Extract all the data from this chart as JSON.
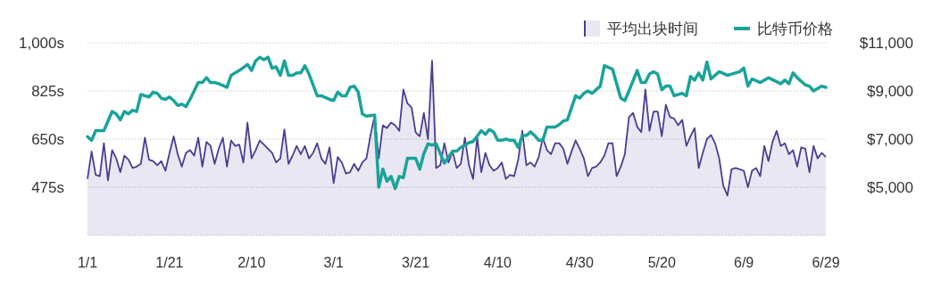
{
  "chart_data": {
    "type": "line",
    "grid": "y",
    "legend": "top right",
    "xlim": [
      "--01-01",
      "--06-29"
    ],
    "xticks": [
      {
        "value": "--01-01",
        "label": "1/1"
      },
      {
        "value": "--01-21",
        "label": "1/21"
      },
      {
        "value": "--02-10",
        "label": "2/10"
      },
      {
        "value": "--03-01",
        "label": "3/1"
      },
      {
        "value": "--03-21",
        "label": "3/21"
      },
      {
        "value": "--04-10",
        "label": "4/10"
      },
      {
        "value": "--04-30",
        "label": "4/30"
      },
      {
        "value": "--05-20",
        "label": "5/20"
      },
      {
        "value": "--06-09",
        "label": "6/9"
      },
      {
        "value": "--06-29",
        "label": "6/29"
      }
    ],
    "ylim": [
      300,
      1000
    ],
    "yticks": [
      {
        "value": 300,
        "label": null
      },
      {
        "value": 475,
        "label": "475s"
      },
      {
        "value": 650,
        "label": "650s"
      },
      {
        "value": 825,
        "label": "825s"
      },
      {
        "value": 1000,
        "label": "1,000s"
      }
    ],
    "y2lim": [
      3000,
      11000
    ],
    "y2ticks": [
      {
        "value": 5000,
        "label": "$5,000"
      },
      {
        "value": 7000,
        "label": "$7,000"
      },
      {
        "value": 9000,
        "label": "$9,000"
      },
      {
        "value": 11000,
        "label": "$11,000"
      }
    ],
    "series": [
      {
        "name": "平均出块时间",
        "type": "area",
        "color": "#4e3b92",
        "x": [
          "--01-01",
          "--01-02",
          "--01-03",
          "--01-04",
          "--01-05",
          "--01-06",
          "--01-07",
          "--01-08",
          "--01-09",
          "--01-10",
          "--01-11",
          "--01-12",
          "--01-13",
          "--01-14",
          "--01-15",
          "--01-16",
          "--01-17",
          "--01-18",
          "--01-19",
          "--01-20",
          "--01-21",
          "--01-22",
          "--01-23",
          "--01-24",
          "--01-25",
          "--01-26",
          "--01-27",
          "--01-28",
          "--01-29",
          "--01-30",
          "--01-31",
          "--02-01",
          "--02-02",
          "--02-03",
          "--02-04",
          "--02-05",
          "--02-06",
          "--02-07",
          "--02-08",
          "--02-09",
          "--02-10",
          "--02-11",
          "--02-12",
          "--02-13",
          "--02-14",
          "--02-15",
          "--02-16",
          "--02-17",
          "--02-18",
          "--02-19",
          "--02-20",
          "--02-21",
          "--02-22",
          "--02-23",
          "--02-24",
          "--02-25",
          "--02-26",
          "--02-27",
          "--02-28",
          "--02-29",
          "--03-01",
          "--03-02",
          "--03-03",
          "--03-04",
          "--03-05",
          "--03-06",
          "--03-07",
          "--03-08",
          "--03-09",
          "--03-10",
          "--03-11",
          "--03-12",
          "--03-13",
          "--03-14",
          "--03-15",
          "--03-16",
          "--03-17",
          "--03-18",
          "--03-19",
          "--03-20",
          "--03-21",
          "--03-22",
          "--03-23",
          "--03-24",
          "--03-25",
          "--03-26",
          "--03-27",
          "--03-28",
          "--03-29",
          "--03-30",
          "--03-31",
          "--04-01",
          "--04-02",
          "--04-03",
          "--04-04",
          "--04-05",
          "--04-06",
          "--04-07",
          "--04-08",
          "--04-09",
          "--04-10",
          "--04-11",
          "--04-12",
          "--04-13",
          "--04-14",
          "--04-15",
          "--04-16",
          "--04-17",
          "--04-18",
          "--04-19",
          "--04-20",
          "--04-21",
          "--04-22",
          "--04-23",
          "--04-24",
          "--04-25",
          "--04-26",
          "--04-27",
          "--04-28",
          "--04-29",
          "--04-30",
          "--05-01",
          "--05-02",
          "--05-03",
          "--05-04",
          "--05-05",
          "--05-06",
          "--05-07",
          "--05-08",
          "--05-09",
          "--05-10",
          "--05-11",
          "--05-12",
          "--05-13",
          "--05-14",
          "--05-15",
          "--05-16",
          "--05-17",
          "--05-18",
          "--05-19",
          "--05-20",
          "--05-21",
          "--05-22",
          "--05-23",
          "--05-24",
          "--05-25",
          "--05-26",
          "--05-27",
          "--05-28",
          "--05-29",
          "--05-30",
          "--05-31",
          "--06-01",
          "--06-02",
          "--06-03",
          "--06-04",
          "--06-05",
          "--06-06",
          "--06-07",
          "--06-08",
          "--06-09",
          "--06-10",
          "--06-11",
          "--06-12",
          "--06-13",
          "--06-14",
          "--06-15",
          "--06-16",
          "--06-17",
          "--06-18",
          "--06-19",
          "--06-20",
          "--06-21",
          "--06-22",
          "--06-23",
          "--06-24",
          "--06-25",
          "--06-26",
          "--06-27",
          "--06-28",
          "--06-29"
        ],
        "values": [
          505,
          605,
          520,
          515,
          635,
          500,
          610,
          580,
          530,
          590,
          575,
          545,
          550,
          560,
          655,
          575,
          570,
          555,
          570,
          535,
          600,
          660,
          595,
          550,
          600,
          610,
          590,
          655,
          550,
          640,
          625,
          560,
          615,
          655,
          550,
          645,
          625,
          630,
          565,
          710,
          580,
          610,
          645,
          630,
          615,
          600,
          565,
          580,
          685,
          560,
          590,
          625,
          595,
          625,
          580,
          600,
          635,
          580,
          560,
          620,
          490,
          585,
          565,
          525,
          530,
          560,
          535,
          565,
          580,
          665,
          735,
          580,
          700,
          690,
          710,
          700,
          680,
          830,
          780,
          765,
          675,
          660,
          745,
          650,
          935,
          545,
          555,
          635,
          565,
          605,
          545,
          560,
          655,
          555,
          505,
          655,
          530,
          600,
          555,
          535,
          545,
          565,
          505,
          520,
          515,
          575,
          680,
          555,
          565,
          550,
          585,
          655,
          610,
          595,
          635,
          635,
          615,
          560,
          605,
          645,
          615,
          580,
          515,
          545,
          550,
          565,
          590,
          635,
          635,
          515,
          550,
          595,
          730,
          745,
          695,
          675,
          830,
          680,
          750,
          750,
          660,
          775,
          730,
          725,
          700,
          720,
          625,
          660,
          690,
          545,
          600,
          650,
          665,
          635,
          580,
          480,
          445,
          540,
          545,
          540,
          535,
          475,
          535,
          545,
          515,
          625,
          570,
          640,
          680,
          625,
          635,
          595,
          610,
          550,
          620,
          615,
          530,
          625,
          580,
          600,
          585
        ]
      },
      {
        "name": "比特币价格",
        "axis": "y2",
        "color": "#1aa39a",
        "x": [
          "--01-01",
          "--01-02",
          "--01-03",
          "--01-05",
          "--01-07",
          "--01-08",
          "--01-09",
          "--01-10",
          "--01-11",
          "--01-12",
          "--01-13",
          "--01-14",
          "--01-15",
          "--01-16",
          "--01-17",
          "--01-18",
          "--01-19",
          "--01-20",
          "--01-21",
          "--01-22",
          "--01-23",
          "--01-24",
          "--01-25",
          "--01-26",
          "--01-28",
          "--01-29",
          "--01-30",
          "--01-31",
          "--02-01",
          "--02-02",
          "--02-04",
          "--02-05",
          "--02-06",
          "--02-07",
          "--02-09",
          "--02-10",
          "--02-11",
          "--02-12",
          "--02-13",
          "--02-14",
          "--02-15",
          "--02-16",
          "--02-17",
          "--02-18",
          "--02-19",
          "--02-20",
          "--02-21",
          "--02-22",
          "--02-23",
          "--02-24",
          "--02-25",
          "--02-26",
          "--02-27",
          "--02-29",
          "--03-01",
          "--03-02",
          "--03-03",
          "--03-04",
          "--03-05",
          "--03-06",
          "--03-07",
          "--03-08",
          "--03-09",
          "--03-11",
          "--03-12",
          "--03-13",
          "--03-14",
          "--03-15",
          "--03-16",
          "--03-17",
          "--03-18",
          "--03-19",
          "--03-21",
          "--03-22",
          "--03-23",
          "--03-24",
          "--03-25",
          "--03-26",
          "--03-27",
          "--03-28",
          "--03-30",
          "--03-31",
          "--04-01",
          "--04-02",
          "--04-03",
          "--04-04",
          "--04-06",
          "--04-07",
          "--04-08",
          "--04-09",
          "--04-10",
          "--04-11",
          "--04-12",
          "--04-13",
          "--04-14",
          "--04-15",
          "--04-16",
          "--04-17",
          "--04-18",
          "--04-19",
          "--04-20",
          "--04-21",
          "--04-22",
          "--04-24",
          "--04-25",
          "--04-26",
          "--04-27",
          "--04-29",
          "--04-30",
          "--05-01",
          "--05-02",
          "--05-03",
          "--05-04",
          "--05-05",
          "--05-06",
          "--05-08",
          "--05-10",
          "--05-11",
          "--05-12",
          "--05-14",
          "--05-15",
          "--05-16",
          "--05-17",
          "--05-18",
          "--05-19",
          "--05-20",
          "--05-21",
          "--05-22",
          "--05-23",
          "--05-25",
          "--05-26",
          "--05-27",
          "--05-28",
          "--05-29",
          "--05-30",
          "--05-31",
          "--06-01",
          "--06-03",
          "--06-05",
          "--06-06",
          "--06-08",
          "--06-09",
          "--06-10",
          "--06-11",
          "--06-13",
          "--06-15",
          "--06-18",
          "--06-19",
          "--06-20",
          "--06-21",
          "--06-22",
          "--06-24",
          "--06-25",
          "--06-26",
          "--06-28",
          "--06-29"
        ],
        "values": [
          7100,
          6950,
          7350,
          7350,
          8150,
          8050,
          7800,
          8150,
          8050,
          8200,
          8150,
          8850,
          8800,
          8750,
          8950,
          8900,
          8700,
          8650,
          8750,
          8600,
          8400,
          8450,
          8350,
          8650,
          9350,
          9350,
          9550,
          9350,
          9350,
          9300,
          9150,
          9650,
          9750,
          9850,
          10100,
          9850,
          10250,
          10400,
          10300,
          10400,
          9950,
          10000,
          9650,
          10250,
          9650,
          9650,
          9750,
          9750,
          10050,
          9700,
          9250,
          8800,
          8800,
          8650,
          8600,
          8950,
          8800,
          8800,
          9150,
          9200,
          8950,
          8050,
          7950,
          8000,
          5000,
          5750,
          5250,
          5450,
          4950,
          5450,
          5400,
          6200,
          6200,
          5750,
          6400,
          6800,
          6750,
          6800,
          6400,
          6000,
          6500,
          6500,
          6650,
          6750,
          6850,
          6900,
          7350,
          7200,
          7400,
          7300,
          6950,
          6950,
          7000,
          6950,
          6950,
          6650,
          7150,
          7150,
          7300,
          7150,
          6950,
          6950,
          7500,
          7500,
          7600,
          7750,
          7800,
          8800,
          8700,
          8900,
          9000,
          8900,
          9050,
          9200,
          10050,
          9900,
          8700,
          8600,
          9000,
          9850,
          9350,
          9350,
          9700,
          9800,
          9700,
          9050,
          9200,
          9200,
          8800,
          8900,
          8800,
          9600,
          9450,
          9750,
          9450,
          10200,
          9500,
          9800,
          9650,
          9700,
          9800,
          9950,
          9200,
          9500,
          9350,
          9550,
          9300,
          9450,
          9300,
          9750,
          9550,
          9250,
          9200,
          9000,
          9200,
          9150
        ]
      }
    ]
  }
}
